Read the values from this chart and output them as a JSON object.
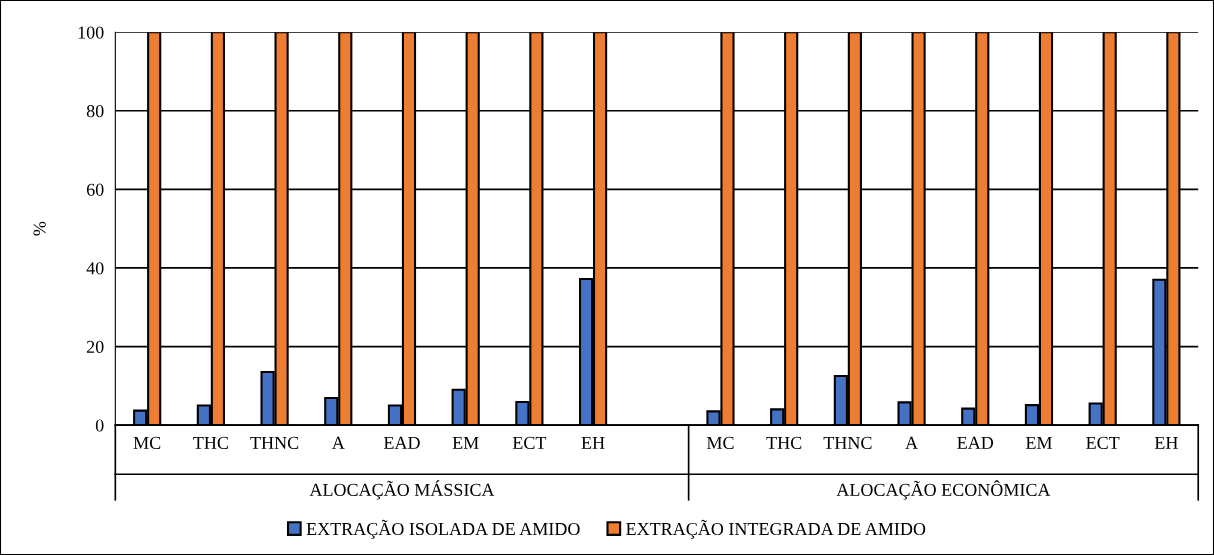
{
  "chart_data": {
    "type": "bar",
    "ylabel": "%",
    "categories": [
      "MC",
      "THC",
      "THNC",
      "A",
      "EAD",
      "EM",
      "ECT",
      "EH",
      null,
      "MC",
      "THC",
      "THNC",
      "A",
      "EAD",
      "EM",
      "ECT",
      "EH"
    ],
    "series": [
      {
        "name": "EXTRAÇÃO ISOLADA DE AMIDO",
        "color": "#4472c4",
        "values": [
          3.7,
          5.0,
          13.5,
          6.9,
          5.0,
          9.0,
          5.9,
          37.2,
          null,
          3.5,
          4.0,
          12.5,
          5.8,
          4.2,
          5.1,
          5.5,
          37.0
        ]
      },
      {
        "name": "EXTRAÇÃO INTEGRADA DE AMIDO",
        "color": "#ed7d31",
        "values": [
          100,
          100,
          100,
          100,
          100,
          100,
          100,
          100,
          null,
          100,
          100,
          100,
          100,
          100,
          100,
          100,
          100
        ]
      }
    ],
    "annotations": [
      "ALOCAÇÃO MÁSSICA",
      "ALOCAÇÃO ECONÔMICA"
    ],
    "ylim": [
      0,
      100
    ],
    "yticks": [
      0,
      20,
      40,
      60,
      80,
      100
    ],
    "grid": "y",
    "legend": "bottom"
  }
}
